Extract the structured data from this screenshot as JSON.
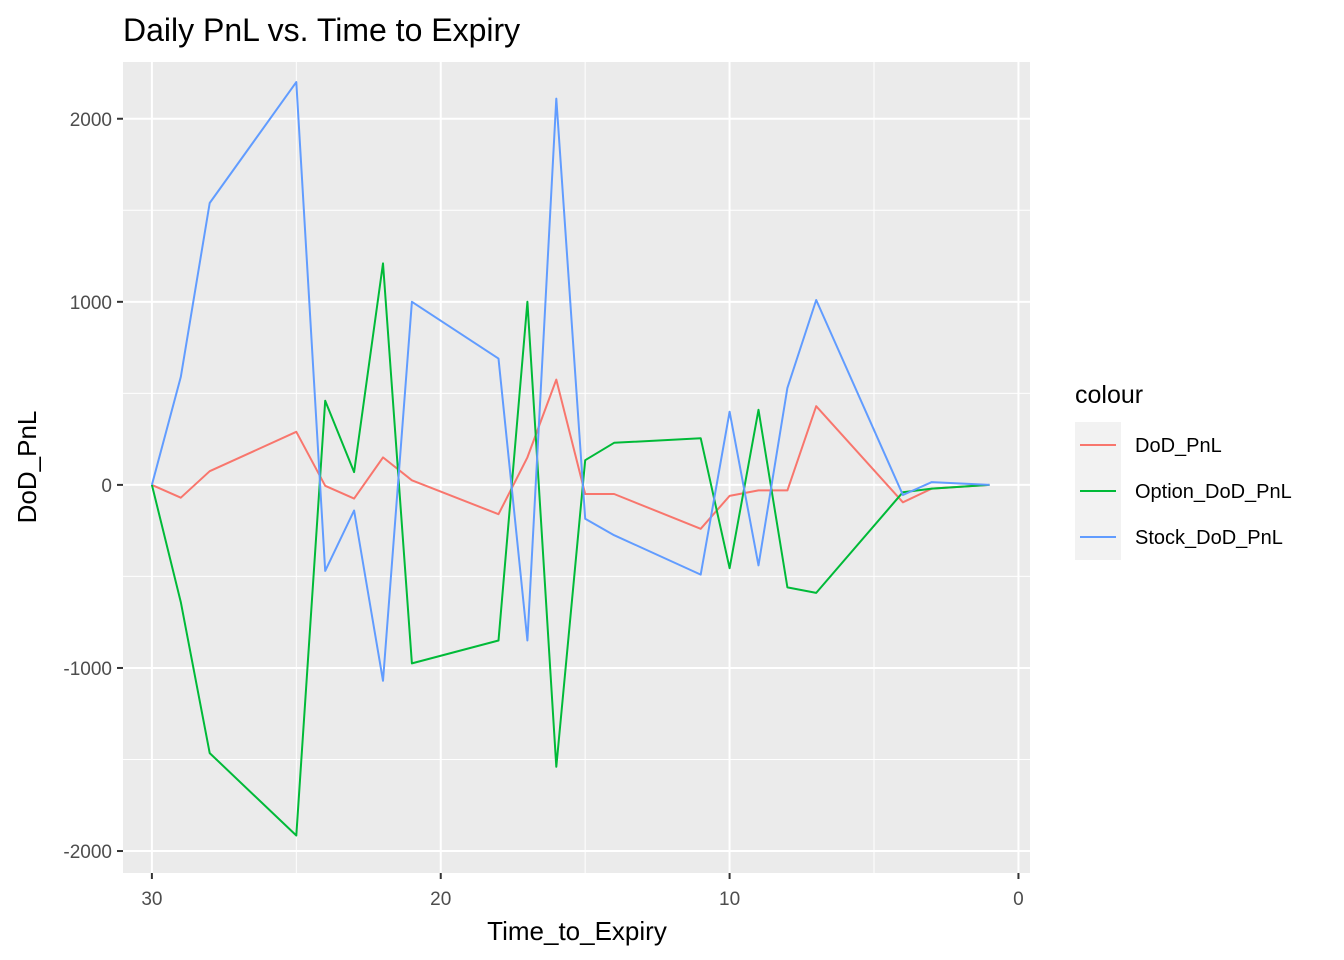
{
  "chart_data": {
    "type": "line",
    "title": "Daily PnL vs. Time to Expiry",
    "xlabel": "Time_to_Expiry",
    "ylabel": "DoD_PnL",
    "x_reversed": true,
    "xlim": [
      31,
      -0.4
    ],
    "ylim": [
      -2120,
      2310
    ],
    "x_ticks": [
      30,
      20,
      10,
      0
    ],
    "x_tick_labels": [
      "30",
      "20",
      "10",
      "0"
    ],
    "y_ticks": [
      2000,
      1000,
      0,
      -1000,
      -2000
    ],
    "y_tick_labels": [
      "2000",
      "1000",
      "0",
      "-1000",
      "-2000"
    ],
    "grid": true,
    "legend": {
      "title": "colour",
      "position": "right"
    },
    "x": [
      30,
      29,
      28,
      25,
      24,
      23,
      22,
      21,
      18,
      17,
      16,
      15,
      14,
      11,
      10,
      9,
      8,
      7,
      4,
      3,
      1
    ],
    "series": [
      {
        "name": "DoD_PnL",
        "color": "#F8766D",
        "values": [
          0,
          -70,
          75,
          290,
          -5,
          -75,
          150,
          25,
          -160,
          150,
          575,
          -50,
          -50,
          -240,
          -60,
          -30,
          -30,
          430,
          -95,
          -20,
          0
        ]
      },
      {
        "name": "Option_DoD_PnL",
        "color": "#00BA38",
        "values": [
          0,
          -640,
          -1465,
          -1915,
          460,
          70,
          1210,
          -975,
          -850,
          1000,
          -1540,
          135,
          230,
          255,
          -455,
          410,
          -560,
          -590,
          -40,
          -20,
          0
        ]
      },
      {
        "name": "Stock_DoD_PnL",
        "color": "#619CFF",
        "values": [
          0,
          590,
          1540,
          2200,
          -470,
          -140,
          -1070,
          1000,
          690,
          -850,
          2110,
          -185,
          -275,
          -490,
          400,
          -440,
          530,
          1010,
          -55,
          15,
          0
        ]
      }
    ]
  }
}
